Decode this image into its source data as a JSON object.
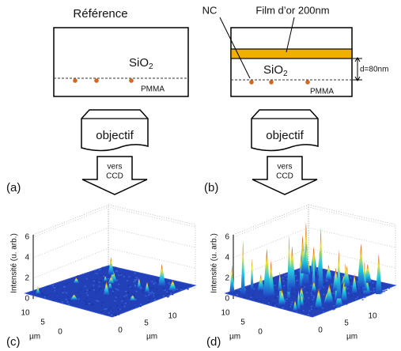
{
  "panel_a": {
    "title": "Référence",
    "material": "SiO",
    "material_sub": "2",
    "layer": "PMMA",
    "objective": "objectif",
    "arrow_text": [
      "vers",
      "CCD"
    ],
    "label": "(a)"
  },
  "panel_b": {
    "nc": "NC",
    "gold_film": "Film d’or 200nm",
    "material": "SiO",
    "material_sub": "2",
    "distance": "d=80nm",
    "layer": "PMMA",
    "objective": "objectif",
    "arrow_text": [
      "vers",
      "CCD"
    ],
    "label": "(b)"
  },
  "panel_c": {
    "z_label": "Intensité (u. arb.)",
    "z_ticks": [
      0,
      2,
      4,
      6
    ],
    "left_ticks": [
      10,
      5,
      0
    ],
    "right_ticks": [
      0,
      5,
      10
    ],
    "unit": "µm",
    "label": "(c)"
  },
  "panel_d": {
    "z_label": "Intensité (u. arb.)",
    "z_ticks": [
      0,
      2,
      4,
      6
    ],
    "left_ticks": [
      10,
      5,
      0
    ],
    "right_ticks": [
      0,
      5,
      10
    ],
    "unit": "µm",
    "label": "(d)"
  }
}
